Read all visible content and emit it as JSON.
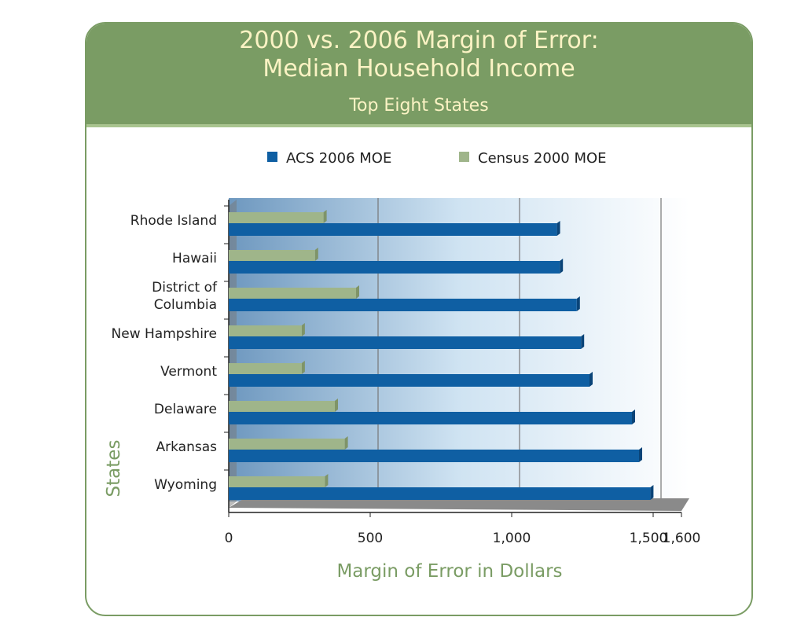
{
  "chart_data": {
    "type": "bar",
    "orientation": "horizontal",
    "title": "2000 vs. 2006 Margin of Error:",
    "title_line2": "Median Household Income",
    "subtitle": "Top Eight States",
    "xlabel": "Margin of Error in Dollars",
    "ylabel": "States",
    "categories": [
      "Rhode Island",
      "Hawaii",
      "District of Columbia",
      "New Hampshire",
      "Vermont",
      "Delaware",
      "Arkansas",
      "Wyoming"
    ],
    "category_lines": [
      [
        "Rhode Island"
      ],
      [
        "Hawaii"
      ],
      [
        "District of",
        "Columbia"
      ],
      [
        "New Hampshire"
      ],
      [
        "Vermont"
      ],
      [
        "Delaware"
      ],
      [
        "Arkansas"
      ],
      [
        "Wyoming"
      ]
    ],
    "series": [
      {
        "name": "ACS 2006 MOE",
        "color": "#0f5fa3",
        "values": [
          1160,
          1170,
          1230,
          1245,
          1275,
          1425,
          1450,
          1490
        ]
      },
      {
        "name": "Census 2000 MOE",
        "color": "#9fb58a",
        "values": [
          335,
          305,
          450,
          258,
          258,
          375,
          410,
          340
        ]
      }
    ],
    "xticks": [
      0,
      500,
      1000,
      1500,
      1600
    ],
    "xtick_labels": [
      "0",
      "500",
      "1,000",
      "1,500",
      "1,600"
    ],
    "xlim": [
      0,
      1600
    ],
    "grid": true,
    "legend": "top"
  }
}
